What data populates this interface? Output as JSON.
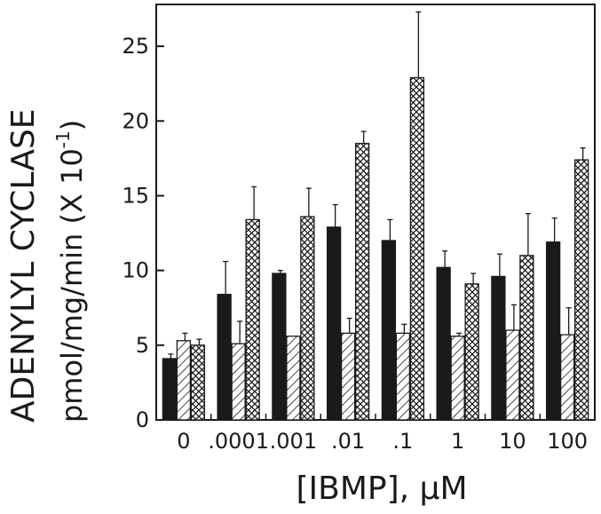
{
  "chart_data": {
    "type": "bar",
    "title": "",
    "ylabel_line1": "ADENYLYL CYCLASE",
    "ylabel_line2": "pmol/mg/min (X 10",
    "ylabel_exp": "-1",
    "ylabel_close": ")",
    "xlabel_bracket_left": "[",
    "xlabel_text": "IBMP",
    "xlabel_bracket_right": "]",
    "xlabel_unit": ", μM",
    "categories": [
      "0",
      ".0001",
      ".001",
      ".01",
      ".1",
      "1",
      "10",
      "100"
    ],
    "yticks": [
      0,
      5,
      10,
      15,
      20,
      25
    ],
    "ylim": [
      0,
      27.8
    ],
    "grid": false,
    "legend": "none",
    "series": [
      {
        "pattern": "solid",
        "color": "#1a1a1a",
        "values": [
          4.1,
          8.4,
          9.8,
          12.9,
          12.0,
          10.2,
          9.6,
          11.9
        ],
        "errors": [
          0.3,
          2.2,
          0.2,
          1.5,
          1.4,
          1.1,
          1.5,
          1.6
        ]
      },
      {
        "pattern": "diagonal-hatch",
        "color": "#1a1a1a",
        "values": [
          5.3,
          5.1,
          5.6,
          5.8,
          5.8,
          5.6,
          6.0,
          5.7
        ],
        "errors": [
          0.5,
          1.5,
          0.0,
          1.0,
          0.6,
          0.2,
          1.7,
          1.8
        ]
      },
      {
        "pattern": "crosshatch",
        "color": "#1a1a1a",
        "values": [
          5.0,
          13.4,
          13.6,
          18.5,
          22.9,
          9.1,
          11.0,
          17.4
        ],
        "errors": [
          0.4,
          2.2,
          1.9,
          0.8,
          4.4,
          0.7,
          2.8,
          0.8
        ]
      }
    ]
  }
}
